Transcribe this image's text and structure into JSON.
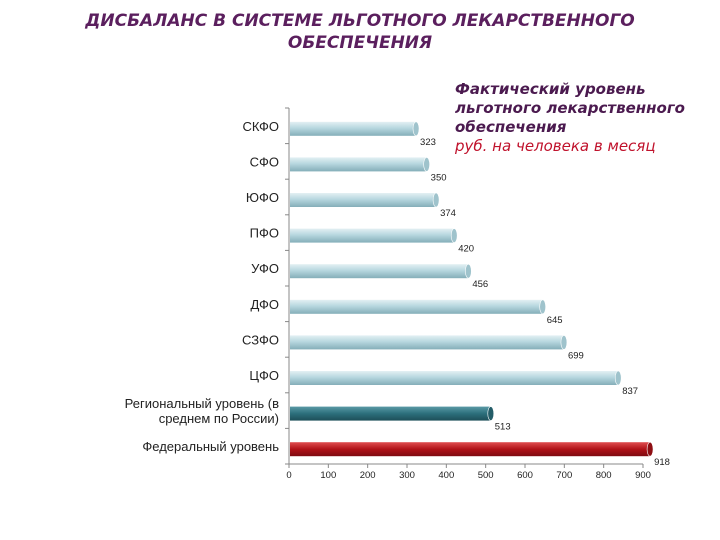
{
  "title": {
    "line1": "ДИСБАЛАНС В СИСТЕМЕ ЛЬГОТНОГО ЛЕКАРСТВЕННОГО",
    "line2": "ОБЕСПЕЧЕНИЯ"
  },
  "annotation": {
    "main": "Фактический уровень льготного лекарственного обеспечения",
    "sub": "руб. на человека в месяц"
  },
  "chart_data": {
    "type": "bar",
    "orientation": "horizontal",
    "categories": [
      "СКФО",
      "СФО",
      "ЮФО",
      "ПФО",
      "УФО",
      "ДФО",
      "СЗФО",
      "ЦФО",
      "Региональный уровень (в среднем по России)",
      "Федеральный уровень"
    ],
    "values": [
      323,
      350,
      374,
      420,
      456,
      645,
      699,
      837,
      513,
      918
    ],
    "bar_styles": [
      "regular",
      "regular",
      "regular",
      "regular",
      "regular",
      "regular",
      "regular",
      "regular",
      "regional",
      "federal"
    ],
    "colors": {
      "regular": "#a9cdd6",
      "regional": "#2c6f7c",
      "federal": "#b01218"
    },
    "xlim": [
      0,
      900
    ],
    "xticks": [
      0,
      100,
      200,
      300,
      400,
      500,
      600,
      700,
      800,
      900
    ],
    "grid": false,
    "legend": "none"
  }
}
